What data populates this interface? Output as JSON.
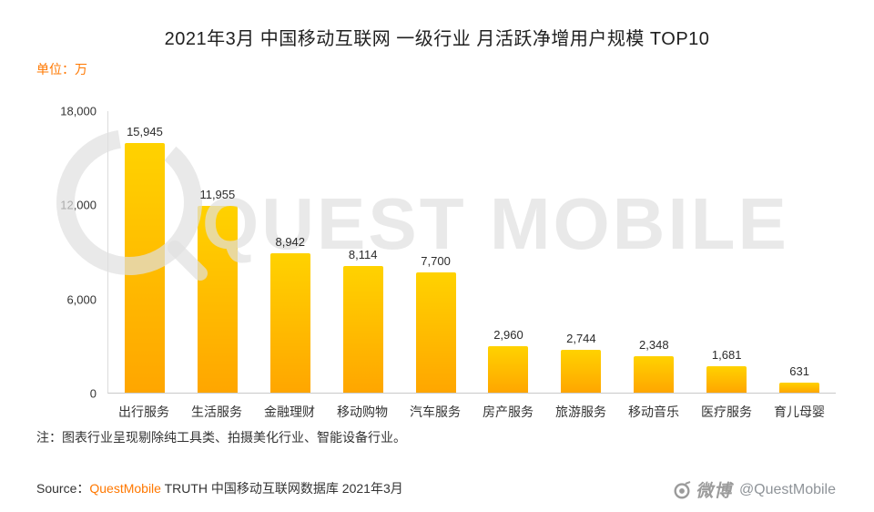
{
  "title": "2021年3月 中国移动互联网 一级行业 月活跃净增用户规模 TOP10",
  "unit_label": "单位：万",
  "chart_data": {
    "type": "bar",
    "title": "2021年3月 中国移动互联网 一级行业 月活跃净增用户规模 TOP10",
    "xlabel": "",
    "ylabel": "单位：万",
    "ylim": [
      0,
      18000
    ],
    "grid": "off",
    "legend": "none",
    "categories": [
      "出行服务",
      "生活服务",
      "金融理财",
      "移动购物",
      "汽车服务",
      "房产服务",
      "旅游服务",
      "移动音乐",
      "医疗服务",
      "育儿母婴"
    ],
    "values": [
      15945,
      11955,
      8942,
      8114,
      7700,
      2960,
      2744,
      2348,
      1681,
      631
    ],
    "value_labels": [
      "15,945",
      "11,955",
      "8,942",
      "8,114",
      "7,700",
      "2,960",
      "2,744",
      "2,348",
      "1,681",
      "631"
    ],
    "y_tick_labels": [
      "18,000",
      "12,000",
      "6,000",
      "0"
    ]
  },
  "note": "注：图表行业呈现剔除纯工具类、拍摄美化行业、智能设备行业。",
  "source": {
    "prefix": "Source：",
    "brand": "QuestMobile",
    "suffix": " TRUTH 中国移动互联网数据库 2021年3月"
  },
  "watermark": {
    "big_text": "QUEST MOBILE"
  },
  "footer_right": {
    "logo_text": "微博",
    "handle": "@QuestMobile"
  },
  "colors": {
    "accent_orange": "#FF7800",
    "bar_top": "#FFD200",
    "bar_bottom": "#FFA600",
    "watermark": "rgba(224,224,224,0.7)",
    "text_dark": "#333333"
  }
}
